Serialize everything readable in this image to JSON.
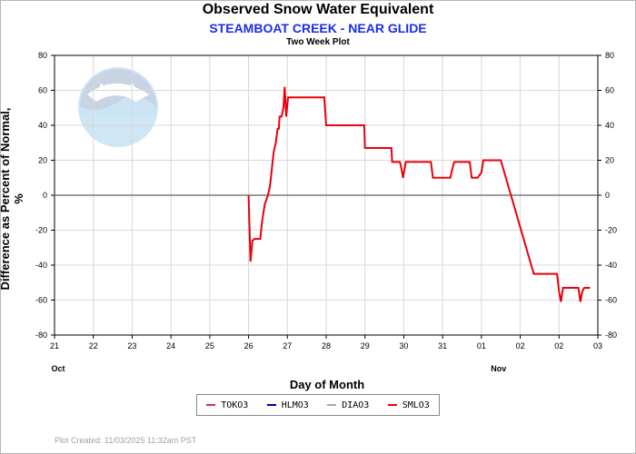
{
  "chart_data": {
    "type": "line",
    "title": "Observed Snow Water Equivalent",
    "subtitle": "STEAMBOAT CREEK - NEAR GLIDE",
    "subsubtitle": "Two Week Plot",
    "xlabel": "Day of Month",
    "ylabel": "Difference as Percent of Normal, %",
    "xlim": [
      0,
      14
    ],
    "ylim": [
      -80,
      80
    ],
    "x_tick_labels": [
      "21",
      "22",
      "23",
      "24",
      "25",
      "26",
      "27",
      "28",
      "29",
      "30",
      "31",
      "01",
      "02",
      "02",
      "03"
    ],
    "month_labels": [
      {
        "label": "Oct",
        "x": 0
      },
      {
        "label": "Nov",
        "x": 11.35
      }
    ],
    "y_ticks": [
      -80,
      -60,
      -40,
      -20,
      0,
      20,
      40,
      60,
      80
    ],
    "grid": true,
    "zero_line": true,
    "legend_position": "bottom",
    "series": [
      {
        "name": "TOKO3",
        "color": "#d0334a",
        "x": [],
        "y": []
      },
      {
        "name": "HLMO3",
        "color": "#00009a",
        "x": [],
        "y": []
      },
      {
        "name": "DIAO3",
        "color": "#a8a8a8",
        "x": [],
        "y": []
      },
      {
        "name": "SMLO3",
        "color": "#e8000b",
        "x": [
          5.0,
          5.02,
          5.05,
          5.1,
          5.15,
          5.2,
          5.3,
          5.35,
          5.42,
          5.5,
          5.55,
          5.6,
          5.65,
          5.7,
          5.75,
          5.78,
          5.8,
          5.85,
          5.9,
          5.93,
          5.95,
          5.97,
          6.0,
          6.02,
          6.04,
          6.06,
          6.08,
          6.1,
          6.15,
          6.5,
          6.95,
          7.0,
          7.5,
          7.98,
          8.0,
          8.68,
          8.7,
          8.9,
          8.95,
          8.98,
          9.02,
          9.05,
          9.1,
          9.7,
          9.75,
          10.2,
          10.25,
          10.3,
          10.7,
          10.75,
          10.9,
          11.0,
          11.05,
          11.5,
          12.35,
          12.95,
          13.0,
          13.05,
          13.1,
          13.5,
          13.55,
          13.6,
          13.65,
          13.8
        ],
        "y": [
          0,
          -15,
          -38,
          -26,
          -25,
          -25,
          -25,
          -15,
          -5,
          0,
          5,
          15,
          25,
          30,
          38,
          38,
          45,
          45,
          50,
          62,
          55,
          45,
          52,
          56,
          56,
          56,
          56,
          56,
          56,
          56,
          56,
          40,
          40,
          40,
          27,
          27,
          19,
          19,
          14,
          10,
          15,
          19,
          19,
          19,
          10,
          10,
          15,
          19,
          19,
          10,
          10,
          13,
          20,
          20,
          -45,
          -45,
          -55,
          -61,
          -53,
          -53,
          -61,
          -55,
          -53,
          -53
        ]
      }
    ]
  },
  "logo_text": "NOAA",
  "plot_created": "Plot Created: 11/03/2025 11:32am PST"
}
